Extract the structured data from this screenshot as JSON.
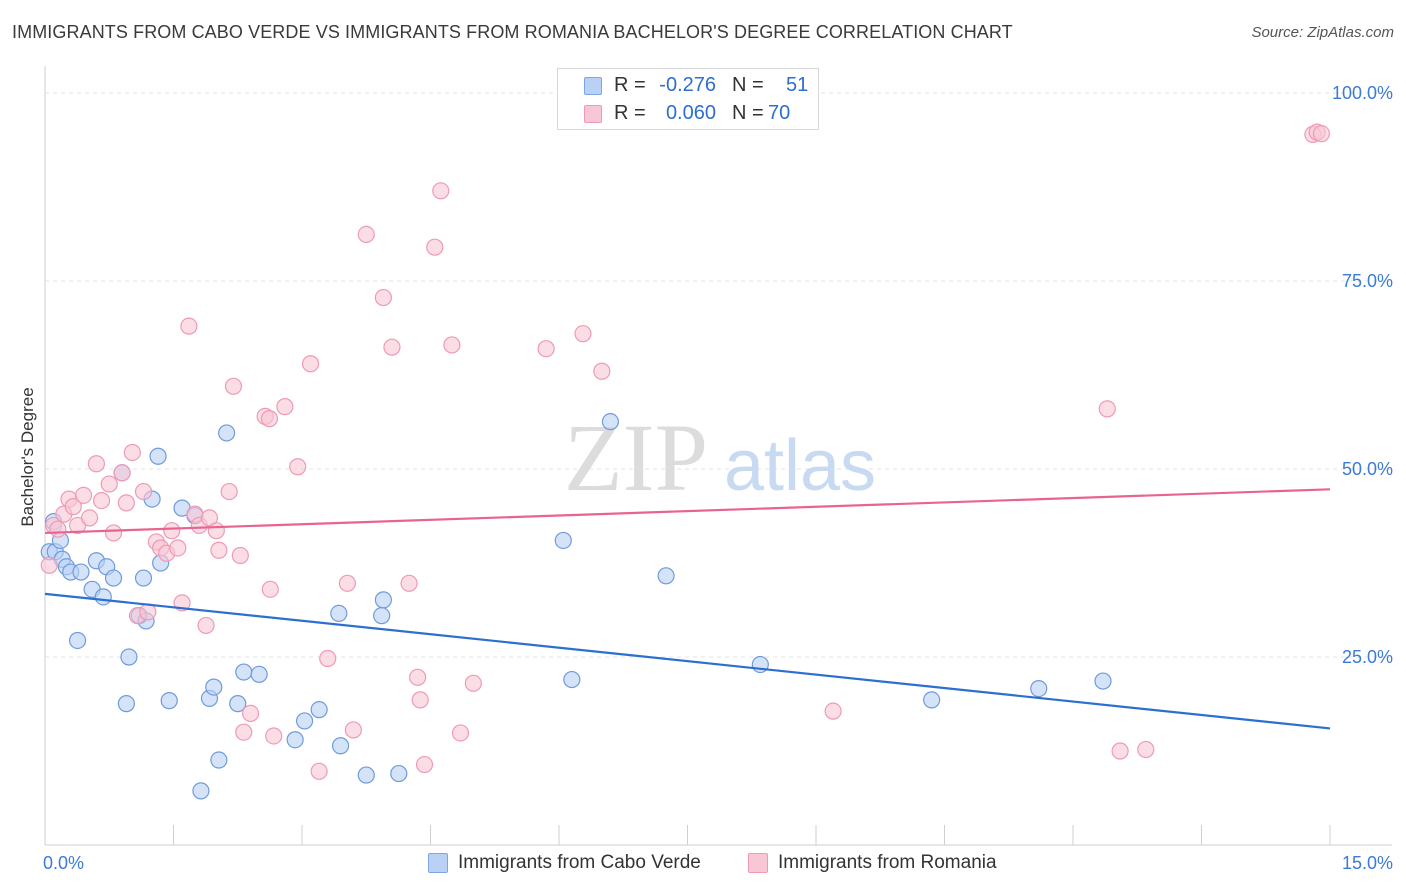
{
  "title": "IMMIGRANTS FROM CABO VERDE VS IMMIGRANTS FROM ROMANIA BACHELOR'S DEGREE CORRELATION CHART",
  "source": "Source: ZipAtlas.com",
  "watermark": {
    "zip": "ZIP",
    "atlas": "atlas"
  },
  "legend": {
    "r_label": "R =",
    "n_label": "N =",
    "series": [
      {
        "r": "-0.276",
        "n": "51",
        "fill": "#b9d1f5",
        "stroke": "#7fa6e0"
      },
      {
        "r": "0.060",
        "n": "70",
        "fill": "#f9c6d6",
        "stroke": "#ef9ab5"
      }
    ]
  },
  "chart_data": {
    "type": "scatter",
    "title": "IMMIGRANTS FROM CABO VERDE VS IMMIGRANTS FROM ROMANIA BACHELOR'S DEGREE CORRELATION CHART",
    "xlabel": "",
    "ylabel": "Bachelor's Degree",
    "xlim": [
      0,
      15
    ],
    "ylim": [
      0,
      102
    ],
    "x_tick_labels": [
      "0.0%",
      "15.0%"
    ],
    "y_ticks": [
      25,
      50,
      75,
      100
    ],
    "y_tick_labels": [
      "25.0%",
      "50.0%",
      "75.0%",
      "100.0%"
    ],
    "grid": true,
    "legend_position": "top-center",
    "series": [
      {
        "name": "Immigrants from Cabo Verde",
        "color": "#2c6fd0",
        "fill": "#b9d1f5",
        "stroke": "#6f9bdc",
        "trend": {
          "x": [
            0,
            15
          ],
          "y": [
            33.4,
            15.5
          ]
        },
        "points": [
          [
            0.05,
            39
          ],
          [
            0.1,
            43
          ],
          [
            0.12,
            39
          ],
          [
            0.18,
            40.5
          ],
          [
            0.2,
            38
          ],
          [
            0.25,
            37
          ],
          [
            0.3,
            36.3
          ],
          [
            0.38,
            27.2
          ],
          [
            0.42,
            36.3
          ],
          [
            0.55,
            34
          ],
          [
            0.6,
            37.8
          ],
          [
            0.68,
            33
          ],
          [
            0.72,
            37
          ],
          [
            0.8,
            35.5
          ],
          [
            0.9,
            49.5
          ],
          [
            0.95,
            18.8
          ],
          [
            0.98,
            25
          ],
          [
            1.1,
            30.5
          ],
          [
            1.15,
            35.5
          ],
          [
            1.18,
            29.8
          ],
          [
            1.25,
            46
          ],
          [
            1.32,
            51.7
          ],
          [
            1.35,
            37.5
          ],
          [
            1.45,
            19.2
          ],
          [
            1.6,
            44.8
          ],
          [
            1.75,
            43.8
          ],
          [
            1.82,
            7.2
          ],
          [
            1.92,
            19.5
          ],
          [
            1.97,
            21
          ],
          [
            2.03,
            11.3
          ],
          [
            2.12,
            54.8
          ],
          [
            2.25,
            18.8
          ],
          [
            2.32,
            23
          ],
          [
            2.5,
            22.7
          ],
          [
            2.92,
            14
          ],
          [
            3.03,
            16.5
          ],
          [
            3.2,
            18
          ],
          [
            3.43,
            30.8
          ],
          [
            3.45,
            13.2
          ],
          [
            3.75,
            9.3
          ],
          [
            3.93,
            30.5
          ],
          [
            3.95,
            32.6
          ],
          [
            4.13,
            9.5
          ],
          [
            6.05,
            40.5
          ],
          [
            6.15,
            22
          ],
          [
            6.6,
            56.3
          ],
          [
            7.25,
            35.8
          ],
          [
            8.35,
            24
          ],
          [
            10.35,
            19.3
          ],
          [
            11.6,
            20.8
          ],
          [
            12.35,
            21.8
          ]
        ]
      },
      {
        "name": "Immigrants from Romania",
        "color": "#e8648f",
        "fill": "#f9c6d6",
        "stroke": "#ef9ab5",
        "trend": {
          "x": [
            0,
            15
          ],
          "y": [
            41.5,
            47.3
          ]
        },
        "points": [
          [
            0.05,
            37.2
          ],
          [
            0.1,
            42.5
          ],
          [
            0.15,
            42
          ],
          [
            0.22,
            44
          ],
          [
            0.28,
            46
          ],
          [
            0.33,
            45
          ],
          [
            0.38,
            42.5
          ],
          [
            0.45,
            46.5
          ],
          [
            0.52,
            43.5
          ],
          [
            0.6,
            50.7
          ],
          [
            0.66,
            45.8
          ],
          [
            0.75,
            48
          ],
          [
            0.8,
            41.5
          ],
          [
            0.9,
            49.5
          ],
          [
            0.95,
            45.5
          ],
          [
            1.02,
            52.2
          ],
          [
            1.08,
            30.5
          ],
          [
            1.15,
            47
          ],
          [
            1.2,
            31
          ],
          [
            1.3,
            40.3
          ],
          [
            1.35,
            39.5
          ],
          [
            1.42,
            38.8
          ],
          [
            1.48,
            41.8
          ],
          [
            1.55,
            39.5
          ],
          [
            1.6,
            32.2
          ],
          [
            1.68,
            69
          ],
          [
            1.75,
            44
          ],
          [
            1.8,
            42.5
          ],
          [
            1.88,
            29.2
          ],
          [
            1.92,
            43.5
          ],
          [
            2.0,
            41.8
          ],
          [
            2.03,
            39.2
          ],
          [
            2.15,
            47
          ],
          [
            2.2,
            61
          ],
          [
            2.28,
            38.5
          ],
          [
            2.32,
            15
          ],
          [
            2.4,
            17.5
          ],
          [
            2.57,
            57
          ],
          [
            2.62,
            56.7
          ],
          [
            2.63,
            34
          ],
          [
            2.67,
            14.5
          ],
          [
            2.8,
            58.3
          ],
          [
            2.95,
            50.3
          ],
          [
            3.1,
            64
          ],
          [
            3.2,
            9.8
          ],
          [
            3.3,
            24.8
          ],
          [
            3.53,
            34.8
          ],
          [
            3.6,
            15.3
          ],
          [
            3.75,
            81.2
          ],
          [
            3.95,
            72.8
          ],
          [
            4.05,
            66.2
          ],
          [
            4.25,
            34.8
          ],
          [
            4.35,
            22.3
          ],
          [
            4.38,
            19.3
          ],
          [
            4.43,
            10.7
          ],
          [
            4.55,
            79.5
          ],
          [
            4.62,
            87
          ],
          [
            4.75,
            66.5
          ],
          [
            4.85,
            14.9
          ],
          [
            5.0,
            21.5
          ],
          [
            5.85,
            66
          ],
          [
            6.28,
            68
          ],
          [
            6.5,
            63
          ],
          [
            9.2,
            17.8
          ],
          [
            12.4,
            58
          ],
          [
            12.55,
            12.5
          ],
          [
            12.85,
            12.7
          ],
          [
            14.8,
            94.5
          ],
          [
            14.85,
            94.8
          ],
          [
            14.9,
            94.6
          ]
        ]
      }
    ]
  }
}
